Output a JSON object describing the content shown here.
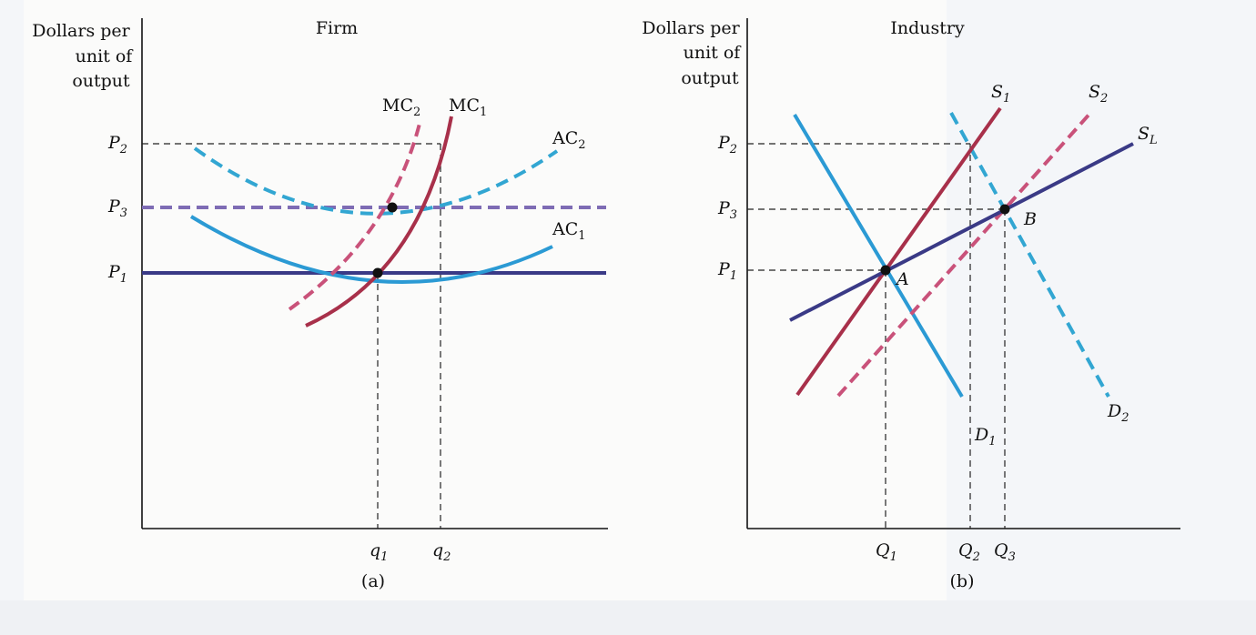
{
  "panel_a": {
    "title": "Firm",
    "ylabel": [
      "Dollars per",
      "unit of",
      "output"
    ],
    "caption": "(a)",
    "price_labels": [
      {
        "base": "P",
        "sub": "2"
      },
      {
        "base": "P",
        "sub": "3"
      },
      {
        "base": "P",
        "sub": "1"
      }
    ],
    "qty_labels": [
      {
        "base": "q",
        "sub": "1"
      },
      {
        "base": "q",
        "sub": "2"
      }
    ],
    "curve_labels": [
      {
        "base": "MC",
        "sub": "2"
      },
      {
        "base": "MC",
        "sub": "1"
      },
      {
        "base": "AC",
        "sub": "2"
      },
      {
        "base": "AC",
        "sub": "1"
      }
    ]
  },
  "panel_b": {
    "title": "Industry",
    "ylabel": [
      "Dollars per",
      "unit of",
      "output"
    ],
    "caption": "(b)",
    "price_labels": [
      {
        "base": "P",
        "sub": "2"
      },
      {
        "base": "P",
        "sub": "3"
      },
      {
        "base": "P",
        "sub": "1"
      }
    ],
    "qty_labels": [
      {
        "base": "Q",
        "sub": "1"
      },
      {
        "base": "Q",
        "sub": "2"
      },
      {
        "base": "Q",
        "sub": "3"
      }
    ],
    "curve_labels": [
      {
        "base": "S",
        "sub": "1"
      },
      {
        "base": "S",
        "sub": "2"
      },
      {
        "base": "S",
        "sub": "L"
      },
      {
        "base": "D",
        "sub": "1"
      },
      {
        "base": "D",
        "sub": "2"
      }
    ],
    "points": [
      "A",
      "B"
    ]
  },
  "colors": {
    "mc1": "#a8304a",
    "mc2": "#c9527a",
    "ac1": "#2b9ad4",
    "ac2": "#32a6d2",
    "p3_line": "#7e6cb4",
    "p1_line": "#3a3a86",
    "s1": "#a8304a",
    "s2": "#c9527a",
    "sl": "#3a3a86",
    "d1": "#2b9ad4",
    "d2": "#32a6d2",
    "axis": "#111111",
    "guide": "#222222"
  }
}
